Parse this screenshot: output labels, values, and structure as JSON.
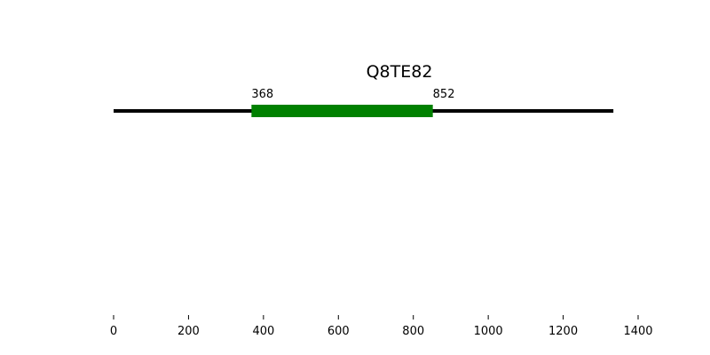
{
  "chart_data": {
    "type": "bar",
    "title": "Q8TE82",
    "sequence": {
      "start": 0,
      "end": 1334
    },
    "domains": [
      {
        "start": 368,
        "end": 852,
        "start_label": "368",
        "end_label": "852",
        "color": "#008000"
      }
    ],
    "xlim": [
      0,
      1400
    ],
    "xticks": [
      0,
      200,
      400,
      600,
      800,
      1000,
      1200,
      1400
    ],
    "xtick_labels": [
      "0",
      "200",
      "400",
      "600",
      "800",
      "1000",
      "1200",
      "1400"
    ],
    "line_color": "#000000",
    "grid": false,
    "legend": "none"
  }
}
